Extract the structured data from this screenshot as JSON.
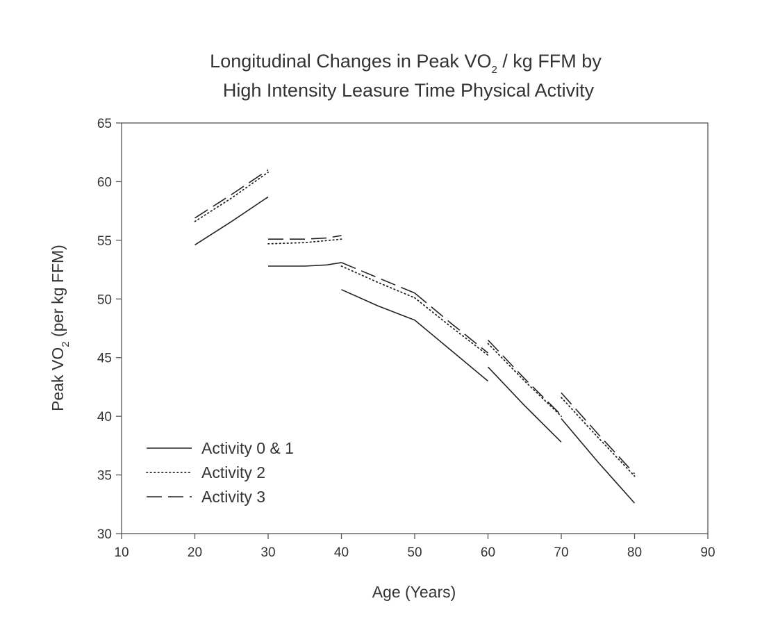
{
  "chart_data": {
    "type": "line",
    "title_line1_pre": "Longitudinal Changes in Peak VO",
    "title_line1_sub": "2",
    "title_line1_post": " / kg FFM by",
    "title_line2": "High Intensity Leasure Time Physical Activity",
    "xlabel": "Age (Years)",
    "ylabel_pre": "Peak VO",
    "ylabel_sub": "2",
    "ylabel_post": " (per kg FFM)",
    "xlim": [
      10,
      90
    ],
    "ylim": [
      30,
      65
    ],
    "xticks": [
      10,
      20,
      30,
      40,
      50,
      60,
      70,
      80,
      90
    ],
    "yticks": [
      30,
      35,
      40,
      45,
      50,
      55,
      60,
      65
    ],
    "legend_position": "bottom-left",
    "series": [
      {
        "name": "Activity 0 & 1",
        "style": "solid",
        "segments": [
          [
            [
              20,
              54.6
            ],
            [
              25,
              56.6
            ],
            [
              30,
              58.7
            ]
          ],
          [
            [
              30,
              52.8
            ],
            [
              35,
              52.8
            ],
            [
              38,
              52.9
            ],
            [
              40,
              53.1
            ]
          ],
          [
            [
              40,
              50.8
            ],
            [
              45,
              49.4
            ],
            [
              50,
              48.2
            ]
          ],
          [
            [
              50,
              48.2
            ],
            [
              55,
              45.6
            ],
            [
              60,
              43.0
            ]
          ],
          [
            [
              60,
              44.2
            ],
            [
              65,
              40.9
            ],
            [
              70,
              37.8
            ]
          ],
          [
            [
              70,
              39.8
            ],
            [
              75,
              36.1
            ],
            [
              80,
              32.6
            ]
          ]
        ]
      },
      {
        "name": "Activity 2",
        "style": "dotted",
        "segments": [
          [
            [
              20,
              56.6
            ],
            [
              25,
              58.6
            ],
            [
              30,
              60.8
            ]
          ],
          [
            [
              30,
              54.7
            ],
            [
              35,
              54.8
            ],
            [
              40,
              55.1
            ]
          ],
          [
            [
              40,
              52.8
            ],
            [
              45,
              51.4
            ],
            [
              50,
              50.1
            ]
          ],
          [
            [
              50,
              50.1
            ],
            [
              55,
              47.6
            ],
            [
              60,
              45.2
            ]
          ],
          [
            [
              60,
              46.2
            ],
            [
              65,
              43.0
            ],
            [
              70,
              40.0
            ]
          ],
          [
            [
              70,
              41.6
            ],
            [
              75,
              38.2
            ],
            [
              80,
              34.9
            ]
          ]
        ]
      },
      {
        "name": "Activity 3",
        "style": "dashed",
        "segments": [
          [
            [
              20,
              56.9
            ],
            [
              25,
              58.9
            ],
            [
              30,
              61.0
            ]
          ],
          [
            [
              30,
              55.1
            ],
            [
              35,
              55.1
            ],
            [
              38,
              55.2
            ],
            [
              40,
              55.4
            ]
          ],
          [
            [
              40,
              53.1
            ],
            [
              45,
              51.8
            ],
            [
              50,
              50.5
            ]
          ],
          [
            [
              50,
              50.5
            ],
            [
              55,
              47.9
            ],
            [
              60,
              45.4
            ]
          ],
          [
            [
              60,
              46.5
            ],
            [
              65,
              43.2
            ],
            [
              70,
              40.1
            ]
          ],
          [
            [
              70,
              42.0
            ],
            [
              75,
              38.5
            ],
            [
              80,
              35.1
            ]
          ]
        ]
      }
    ],
    "colors": {
      "line": "#222222",
      "axis": "#555555",
      "text": "#333333"
    }
  }
}
